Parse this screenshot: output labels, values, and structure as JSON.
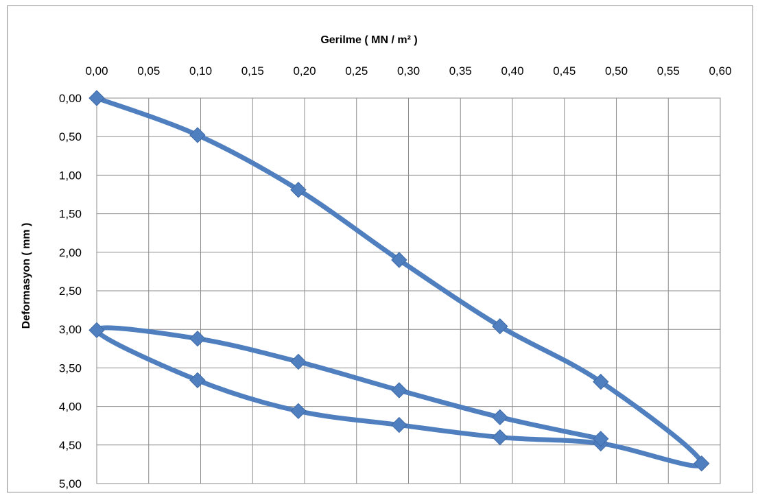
{
  "chart_data": {
    "type": "line",
    "title": "",
    "xlabel": "Gerilme  ( MN  / m² )",
    "ylabel": "Deformasyon ( mm )",
    "x_axis_position": "top",
    "y_axis_inverted": true,
    "xlim": [
      0,
      0.6
    ],
    "ylim": [
      0,
      5
    ],
    "x_ticks": [
      "0,00",
      "0,05",
      "0,10",
      "0,15",
      "0,20",
      "0,25",
      "0,30",
      "0,35",
      "0,40",
      "0,45",
      "0,50",
      "0,55",
      "0,60"
    ],
    "y_ticks": [
      "0,00",
      "0,50",
      "1,00",
      "1,50",
      "2,00",
      "2,50",
      "3,00",
      "3,50",
      "4,00",
      "4,50",
      "5,00"
    ],
    "grid": true,
    "legend": "none",
    "series_color": "#4f7fbf",
    "series": [
      {
        "marker": "diamond",
        "smooth": true,
        "x": [
          0.0,
          0.097,
          0.194,
          0.291,
          0.388,
          0.485,
          0.582,
          0.485,
          0.388,
          0.291,
          0.194,
          0.097,
          0.0,
          0.097,
          0.194,
          0.291,
          0.388,
          0.485
        ],
        "y": [
          0.0,
          0.48,
          1.19,
          2.1,
          2.96,
          3.68,
          4.74,
          4.48,
          4.4,
          4.24,
          4.06,
          3.66,
          3.01,
          3.12,
          3.42,
          3.79,
          4.14,
          4.42
        ]
      }
    ]
  }
}
